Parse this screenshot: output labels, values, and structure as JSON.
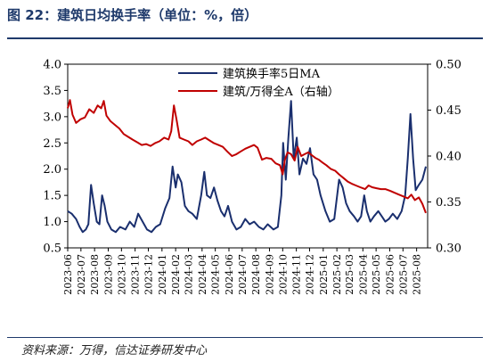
{
  "title": "图 22：建筑日均换手率（单位：%，倍）",
  "source": "资料来源：万得，信达证券研发中心",
  "colors": {
    "primary": "#1a2f6e",
    "secondary": "#c00000",
    "rule": "#1f3a6b"
  },
  "chart_data": {
    "type": "line",
    "title": "",
    "xlabel": "",
    "ylabel": "",
    "y_left": {
      "ylim": [
        0.5,
        4.0
      ],
      "ticks": [
        "0.5",
        "1.0",
        "1.5",
        "2.0",
        "2.5",
        "3.0",
        "3.5",
        "4.0"
      ]
    },
    "y_right": {
      "ylim": [
        0.3,
        0.5
      ],
      "ticks": [
        "0.30",
        "0.35",
        "0.40",
        "0.45",
        "0.50"
      ]
    },
    "x_ticks": [
      "2023-06",
      "2023-07",
      "2023-08",
      "2023-09",
      "2023-10",
      "2023-11",
      "2023-12",
      "2024-01",
      "2024-02",
      "2024-03",
      "2024-04",
      "2024-05",
      "2024-06",
      "2024-07",
      "2024-08",
      "2024-09",
      "2024-10",
      "2024-11",
      "2024-12",
      "2025-01",
      "2025-02",
      "2025-03",
      "2025-04",
      "2025-05",
      "2025-06",
      "2025-07",
      "2025-08"
    ],
    "grid": false,
    "legend_position": "top",
    "series": [
      {
        "name": "建筑换手率5日MA",
        "axis": "left",
        "color": "#1a2f6e",
        "points": [
          [
            "2023-06-01",
            1.2
          ],
          [
            "2023-06-10",
            1.15
          ],
          [
            "2023-06-20",
            1.05
          ],
          [
            "2023-06-28",
            0.9
          ],
          [
            "2023-07-05",
            0.8
          ],
          [
            "2023-07-12",
            0.85
          ],
          [
            "2023-07-18",
            0.95
          ],
          [
            "2023-07-24",
            1.7
          ],
          [
            "2023-07-30",
            1.35
          ],
          [
            "2023-08-06",
            1.0
          ],
          [
            "2023-08-12",
            0.95
          ],
          [
            "2023-08-18",
            1.5
          ],
          [
            "2023-08-24",
            1.3
          ],
          [
            "2023-08-30",
            1.0
          ],
          [
            "2023-09-08",
            0.85
          ],
          [
            "2023-09-18",
            0.8
          ],
          [
            "2023-09-28",
            0.9
          ],
          [
            "2023-10-10",
            0.85
          ],
          [
            "2023-10-20",
            1.0
          ],
          [
            "2023-10-30",
            0.9
          ],
          [
            "2023-11-08",
            1.15
          ],
          [
            "2023-11-18",
            1.0
          ],
          [
            "2023-11-28",
            0.85
          ],
          [
            "2023-12-08",
            0.8
          ],
          [
            "2023-12-18",
            0.9
          ],
          [
            "2023-12-28",
            0.95
          ],
          [
            "2024-01-08",
            1.25
          ],
          [
            "2024-01-18",
            1.45
          ],
          [
            "2024-01-25",
            2.05
          ],
          [
            "2024-02-01",
            1.65
          ],
          [
            "2024-02-06",
            1.9
          ],
          [
            "2024-02-14",
            1.75
          ],
          [
            "2024-02-22",
            1.3
          ],
          [
            "2024-03-01",
            1.2
          ],
          [
            "2024-03-10",
            1.15
          ],
          [
            "2024-03-20",
            1.05
          ],
          [
            "2024-03-30",
            1.5
          ],
          [
            "2024-04-06",
            1.95
          ],
          [
            "2024-04-12",
            1.5
          ],
          [
            "2024-04-20",
            1.45
          ],
          [
            "2024-04-28",
            1.65
          ],
          [
            "2024-05-06",
            1.4
          ],
          [
            "2024-05-14",
            1.2
          ],
          [
            "2024-05-22",
            1.1
          ],
          [
            "2024-05-30",
            1.3
          ],
          [
            "2024-06-08",
            1.0
          ],
          [
            "2024-06-18",
            0.85
          ],
          [
            "2024-06-28",
            0.9
          ],
          [
            "2024-07-08",
            1.05
          ],
          [
            "2024-07-18",
            0.95
          ],
          [
            "2024-07-28",
            1.0
          ],
          [
            "2024-08-08",
            0.9
          ],
          [
            "2024-08-18",
            0.85
          ],
          [
            "2024-08-28",
            0.95
          ],
          [
            "2024-09-10",
            0.85
          ],
          [
            "2024-09-20",
            0.9
          ],
          [
            "2024-09-28",
            1.5
          ],
          [
            "2024-10-02",
            2.5
          ],
          [
            "2024-10-08",
            1.8
          ],
          [
            "2024-10-14",
            2.6
          ],
          [
            "2024-10-20",
            3.3
          ],
          [
            "2024-10-26",
            2.2
          ],
          [
            "2024-11-02",
            2.6
          ],
          [
            "2024-11-08",
            1.9
          ],
          [
            "2024-11-16",
            2.2
          ],
          [
            "2024-11-24",
            2.1
          ],
          [
            "2024-12-02",
            2.4
          ],
          [
            "2024-12-10",
            1.9
          ],
          [
            "2024-12-18",
            1.8
          ],
          [
            "2024-12-26",
            1.5
          ],
          [
            "2025-01-06",
            1.2
          ],
          [
            "2025-01-16",
            1.0
          ],
          [
            "2025-01-26",
            1.05
          ],
          [
            "2025-02-06",
            1.8
          ],
          [
            "2025-02-14",
            1.65
          ],
          [
            "2025-02-22",
            1.35
          ],
          [
            "2025-03-02",
            1.2
          ],
          [
            "2025-03-12",
            1.1
          ],
          [
            "2025-03-20",
            1.0
          ],
          [
            "2025-03-28",
            1.1
          ],
          [
            "2025-04-04",
            1.5
          ],
          [
            "2025-04-10",
            1.2
          ],
          [
            "2025-04-18",
            1.0
          ],
          [
            "2025-04-26",
            1.1
          ],
          [
            "2025-05-06",
            1.2
          ],
          [
            "2025-05-14",
            1.1
          ],
          [
            "2025-05-22",
            1.0
          ],
          [
            "2025-05-30",
            1.05
          ],
          [
            "2025-06-08",
            1.15
          ],
          [
            "2025-06-18",
            1.05
          ],
          [
            "2025-06-28",
            1.2
          ],
          [
            "2025-07-06",
            1.5
          ],
          [
            "2025-07-12",
            2.2
          ],
          [
            "2025-07-18",
            3.05
          ],
          [
            "2025-07-24",
            2.2
          ],
          [
            "2025-07-30",
            1.6
          ],
          [
            "2025-08-06",
            1.7
          ],
          [
            "2025-08-14",
            1.8
          ],
          [
            "2025-08-22",
            2.05
          ]
        ]
      },
      {
        "name": "建筑/万得全A（右轴）",
        "axis": "right",
        "color": "#c00000",
        "points": [
          [
            "2023-06-01",
            0.452
          ],
          [
            "2023-06-06",
            0.461
          ],
          [
            "2023-06-12",
            0.445
          ],
          [
            "2023-06-20",
            0.436
          ],
          [
            "2023-06-30",
            0.44
          ],
          [
            "2023-07-10",
            0.442
          ],
          [
            "2023-07-20",
            0.451
          ],
          [
            "2023-07-30",
            0.447
          ],
          [
            "2023-08-08",
            0.455
          ],
          [
            "2023-08-16",
            0.452
          ],
          [
            "2023-08-22",
            0.46
          ],
          [
            "2023-08-28",
            0.444
          ],
          [
            "2023-09-06",
            0.438
          ],
          [
            "2023-09-16",
            0.434
          ],
          [
            "2023-09-26",
            0.43
          ],
          [
            "2023-10-06",
            0.424
          ],
          [
            "2023-10-16",
            0.421
          ],
          [
            "2023-10-26",
            0.418
          ],
          [
            "2023-11-06",
            0.415
          ],
          [
            "2023-11-16",
            0.412
          ],
          [
            "2023-11-26",
            0.413
          ],
          [
            "2023-12-06",
            0.411
          ],
          [
            "2023-12-16",
            0.414
          ],
          [
            "2023-12-26",
            0.416
          ],
          [
            "2024-01-06",
            0.42
          ],
          [
            "2024-01-16",
            0.418
          ],
          [
            "2024-01-22",
            0.427
          ],
          [
            "2024-01-28",
            0.455
          ],
          [
            "2024-02-03",
            0.44
          ],
          [
            "2024-02-10",
            0.42
          ],
          [
            "2024-02-20",
            0.418
          ],
          [
            "2024-03-01",
            0.416
          ],
          [
            "2024-03-10",
            0.412
          ],
          [
            "2024-03-20",
            0.416
          ],
          [
            "2024-03-30",
            0.418
          ],
          [
            "2024-04-08",
            0.42
          ],
          [
            "2024-04-18",
            0.417
          ],
          [
            "2024-04-28",
            0.414
          ],
          [
            "2024-05-08",
            0.412
          ],
          [
            "2024-05-18",
            0.41
          ],
          [
            "2024-05-28",
            0.405
          ],
          [
            "2024-06-08",
            0.4
          ],
          [
            "2024-06-18",
            0.402
          ],
          [
            "2024-06-28",
            0.405
          ],
          [
            "2024-07-08",
            0.408
          ],
          [
            "2024-07-18",
            0.41
          ],
          [
            "2024-07-28",
            0.412
          ],
          [
            "2024-08-05",
            0.409
          ],
          [
            "2024-08-15",
            0.396
          ],
          [
            "2024-08-25",
            0.398
          ],
          [
            "2024-09-05",
            0.397
          ],
          [
            "2024-09-15",
            0.392
          ],
          [
            "2024-09-25",
            0.39
          ],
          [
            "2024-10-01",
            0.38
          ],
          [
            "2024-10-06",
            0.396
          ],
          [
            "2024-10-12",
            0.404
          ],
          [
            "2024-10-20",
            0.402
          ],
          [
            "2024-10-28",
            0.395
          ],
          [
            "2024-11-04",
            0.41
          ],
          [
            "2024-11-12",
            0.4
          ],
          [
            "2024-11-20",
            0.402
          ],
          [
            "2024-11-28",
            0.404
          ],
          [
            "2024-12-06",
            0.401
          ],
          [
            "2024-12-14",
            0.398
          ],
          [
            "2024-12-22",
            0.396
          ],
          [
            "2024-12-30",
            0.393
          ],
          [
            "2025-01-08",
            0.39
          ],
          [
            "2025-01-18",
            0.386
          ],
          [
            "2025-01-28",
            0.384
          ],
          [
            "2025-02-06",
            0.38
          ],
          [
            "2025-02-16",
            0.376
          ],
          [
            "2025-02-26",
            0.372
          ],
          [
            "2025-03-06",
            0.37
          ],
          [
            "2025-03-16",
            0.368
          ],
          [
            "2025-03-26",
            0.366
          ],
          [
            "2025-04-06",
            0.364
          ],
          [
            "2025-04-14",
            0.368
          ],
          [
            "2025-04-22",
            0.366
          ],
          [
            "2025-05-02",
            0.365
          ],
          [
            "2025-05-12",
            0.364
          ],
          [
            "2025-05-22",
            0.364
          ],
          [
            "2025-06-02",
            0.362
          ],
          [
            "2025-06-12",
            0.36
          ],
          [
            "2025-06-22",
            0.358
          ],
          [
            "2025-07-02",
            0.356
          ],
          [
            "2025-07-12",
            0.354
          ],
          [
            "2025-07-20",
            0.358
          ],
          [
            "2025-07-28",
            0.352
          ],
          [
            "2025-08-06",
            0.355
          ],
          [
            "2025-08-14",
            0.348
          ],
          [
            "2025-08-22",
            0.338
          ]
        ]
      }
    ]
  }
}
